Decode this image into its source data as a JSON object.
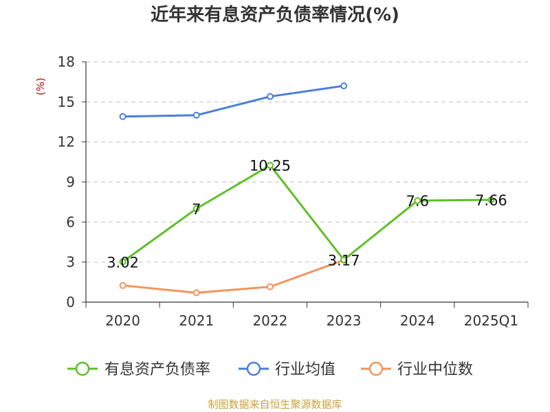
{
  "chart_data": {
    "type": "line",
    "title": "近年来有息资产负债率情况(%)",
    "unit_label": "(%)",
    "categories": [
      "2020",
      "2021",
      "2022",
      "2023",
      "2024",
      "2025Q1"
    ],
    "y_ticks": [
      "0",
      "3",
      "6",
      "9",
      "12",
      "15",
      "18"
    ],
    "ylim": [
      0,
      18
    ],
    "grid": true,
    "legend_position": "bottom",
    "series": [
      {
        "name": "有息资产负债率",
        "color": "#5dc025",
        "values": [
          3.02,
          7,
          10.25,
          3.17,
          7.6,
          7.66
        ],
        "labels": [
          "3.02",
          "7",
          "10.25",
          "3.17",
          "7.6",
          "7.66"
        ]
      },
      {
        "name": "行业均值",
        "color": "#4a7fd6",
        "values": [
          13.9,
          14.0,
          15.4,
          16.2,
          null,
          null
        ]
      },
      {
        "name": "行业中位数",
        "color": "#f5935a",
        "values": [
          1.25,
          0.7,
          1.15,
          3.15,
          null,
          null
        ]
      }
    ],
    "source": "制图数据来自恒生聚源数据库"
  }
}
